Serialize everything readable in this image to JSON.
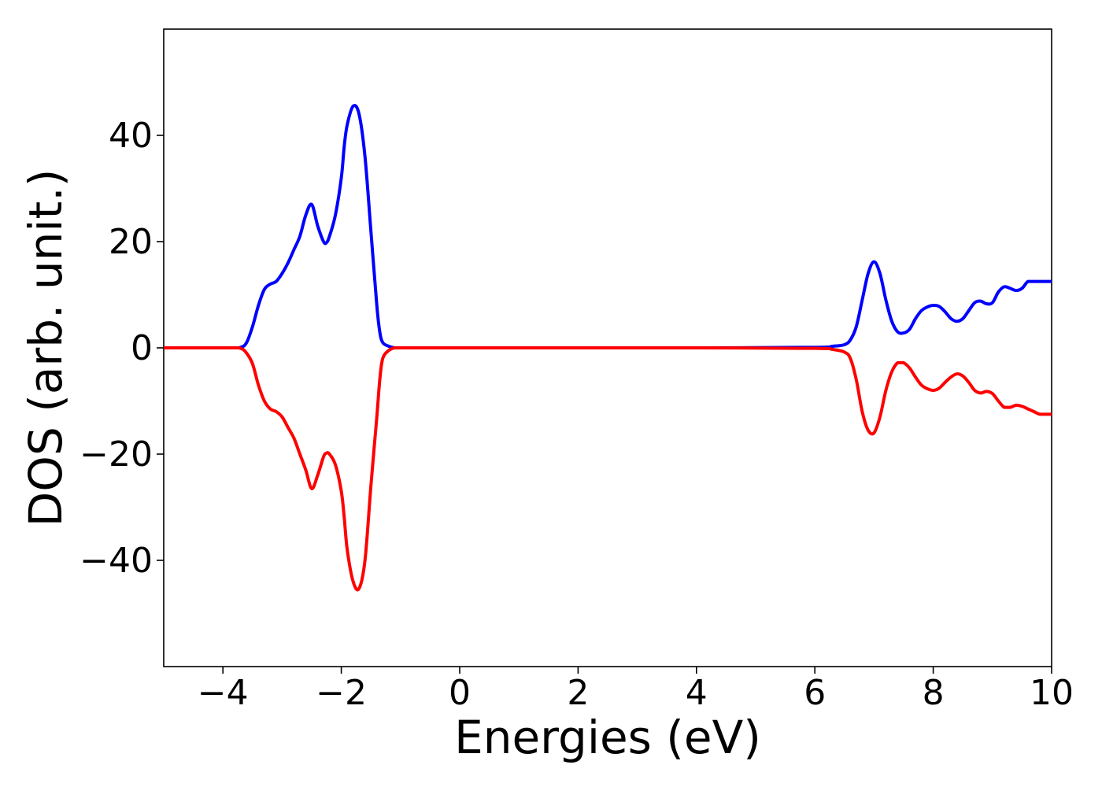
{
  "chart_data": {
    "type": "line",
    "title": "",
    "xlabel": "Energies (eV)",
    "ylabel": "DOS (arb. unit.)",
    "xlim": [
      -5,
      10
    ],
    "ylim": [
      -60,
      60
    ],
    "grid": false,
    "x_ticks": [
      -4,
      -2,
      0,
      2,
      4,
      6,
      8,
      10
    ],
    "x_tick_labels": [
      "−4",
      "−2",
      "0",
      "2",
      "4",
      "6",
      "8",
      "10"
    ],
    "y_ticks": [
      -40,
      -20,
      0,
      20,
      40
    ],
    "y_tick_labels": [
      "−40",
      "−20",
      "0",
      "20",
      "40"
    ],
    "series": [
      {
        "color": "#0000ff",
        "x": [
          -5,
          -3.9,
          -3.7,
          -3.6,
          -3.5,
          -3.4,
          -3.3,
          -3.2,
          -3.1,
          -3.0,
          -2.9,
          -2.8,
          -2.7,
          -2.6,
          -2.5,
          -2.4,
          -2.3,
          -2.25,
          -2.2,
          -2.1,
          -2.0,
          -1.95,
          -1.9,
          -1.8,
          -1.7,
          -1.6,
          -1.5,
          -1.4,
          -1.35,
          -1.3,
          -1.2,
          -1.1,
          -1.0,
          -0.9,
          -0.8,
          -0.7,
          -0.6,
          -0.5,
          0,
          2,
          4,
          6,
          6.3,
          6.5,
          6.6,
          6.7,
          6.8,
          6.9,
          7.0,
          7.1,
          7.2,
          7.3,
          7.4,
          7.5,
          7.6,
          7.7,
          7.8,
          7.9,
          8.0,
          8.1,
          8.2,
          8.3,
          8.4,
          8.5,
          8.6,
          8.7,
          8.8,
          8.9,
          9.0,
          9.1,
          9.2,
          9.3,
          9.4,
          9.5,
          9.6,
          9.7,
          9.8,
          9.9,
          10.0
        ],
        "y": [
          0,
          0,
          0.1,
          1,
          4,
          8,
          11,
          12,
          12.5,
          14,
          16,
          18.5,
          21,
          25,
          27,
          23,
          20,
          19.8,
          21,
          25,
          32,
          38,
          42,
          45.5,
          44,
          36,
          22,
          8,
          3,
          1,
          0.3,
          0,
          0,
          0,
          0,
          0,
          0,
          0,
          0,
          0,
          0,
          0.1,
          0.3,
          0.6,
          1.5,
          4,
          9,
          14,
          16.2,
          14,
          9,
          5,
          3,
          2.8,
          3.5,
          5.5,
          7,
          7.7,
          8,
          7.8,
          6.8,
          5.5,
          5,
          5.5,
          7,
          8.5,
          8.8,
          8.3,
          8.5,
          10.5,
          11.5,
          11.2,
          10.8,
          11.2,
          12.5,
          12.5,
          12.5,
          12.5,
          12.5
        ]
      },
      {
        "color": "#ff0000",
        "x": [
          -5,
          -3.9,
          -3.7,
          -3.6,
          -3.5,
          -3.4,
          -3.3,
          -3.2,
          -3.1,
          -3.0,
          -2.9,
          -2.8,
          -2.7,
          -2.6,
          -2.5,
          -2.4,
          -2.3,
          -2.25,
          -2.2,
          -2.1,
          -2.0,
          -1.95,
          -1.9,
          -1.8,
          -1.7,
          -1.6,
          -1.5,
          -1.4,
          -1.35,
          -1.3,
          -1.2,
          -1.1,
          -1.0,
          -0.9,
          -0.8,
          -0.7,
          -0.6,
          -0.5,
          0,
          2,
          4,
          6,
          6.3,
          6.5,
          6.6,
          6.7,
          6.8,
          6.9,
          7.0,
          7.1,
          7.2,
          7.3,
          7.4,
          7.5,
          7.6,
          7.7,
          7.8,
          7.9,
          8.0,
          8.1,
          8.2,
          8.3,
          8.4,
          8.5,
          8.6,
          8.7,
          8.8,
          8.9,
          9.0,
          9.1,
          9.2,
          9.3,
          9.4,
          9.5,
          9.6,
          9.7,
          9.8,
          9.9,
          10.0
        ],
        "y": [
          0,
          0,
          -0.1,
          -1,
          -3,
          -7,
          -10,
          -11.5,
          -12,
          -13,
          -15,
          -17,
          -20,
          -23,
          -26.5,
          -24,
          -20.5,
          -19.8,
          -20,
          -22,
          -27,
          -32,
          -38,
          -44,
          -45.3,
          -40,
          -26,
          -13,
          -6,
          -2,
          -0.5,
          0,
          0,
          0,
          0,
          0,
          0,
          0,
          0,
          0,
          0,
          -0.1,
          -0.3,
          -0.8,
          -2,
          -6,
          -12,
          -15.5,
          -16,
          -13,
          -8,
          -4.5,
          -2.8,
          -2.8,
          -3.8,
          -5.5,
          -7,
          -7.7,
          -8,
          -7.6,
          -6.5,
          -5.5,
          -4.9,
          -5.3,
          -6.5,
          -8,
          -8.5,
          -8.2,
          -8.6,
          -10,
          -11.2,
          -11.2,
          -10.8,
          -11,
          -11.5,
          -12,
          -12.5,
          -12.5,
          -12.5
        ]
      }
    ]
  }
}
